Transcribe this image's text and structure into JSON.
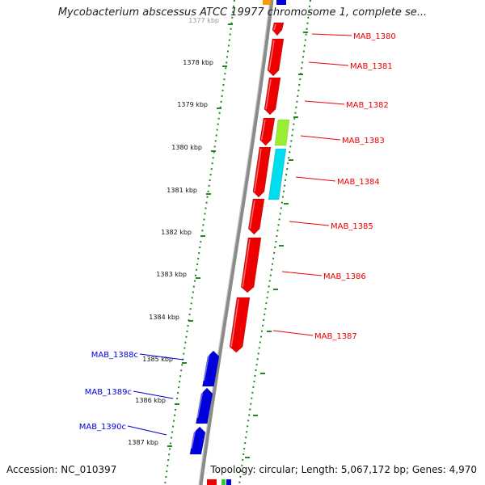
{
  "title": "Mycobacterium abscessus ATCC 19977 chromosome 1, complete se...",
  "footer": {
    "accession": "Accession: NC_010397",
    "stats": "Topology: circular; Length: 5,067,172 bp; Genes: 4,970"
  },
  "colors": {
    "forward": "#ee0000",
    "reverse": "#0000dd",
    "green": "#99ee33",
    "cyan": "#00ddee",
    "tick": "#228822",
    "backbone": "#888888"
  },
  "ticks": [
    {
      "label": "1377 kbp"
    },
    {
      "label": "1378 kbp"
    },
    {
      "label": "1379 kbp"
    },
    {
      "label": "1380 kbp"
    },
    {
      "label": "1381 kbp"
    },
    {
      "label": "1382 kbp"
    },
    {
      "label": "1383 kbp"
    },
    {
      "label": "1384 kbp"
    },
    {
      "label": "1385 kbp"
    },
    {
      "label": "1386 kbp"
    },
    {
      "label": "1387 kbp"
    }
  ],
  "genes_forward": [
    {
      "name": "MAB_1380"
    },
    {
      "name": "MAB_1381"
    },
    {
      "name": "MAB_1382"
    },
    {
      "name": "MAB_1383"
    },
    {
      "name": "MAB_1384"
    },
    {
      "name": "MAB_1385"
    },
    {
      "name": "MAB_1386"
    },
    {
      "name": "MAB_1387"
    }
  ],
  "genes_reverse": [
    {
      "name": "MAB_1388c"
    },
    {
      "name": "MAB_1389c"
    },
    {
      "name": "MAB_1390c"
    }
  ]
}
